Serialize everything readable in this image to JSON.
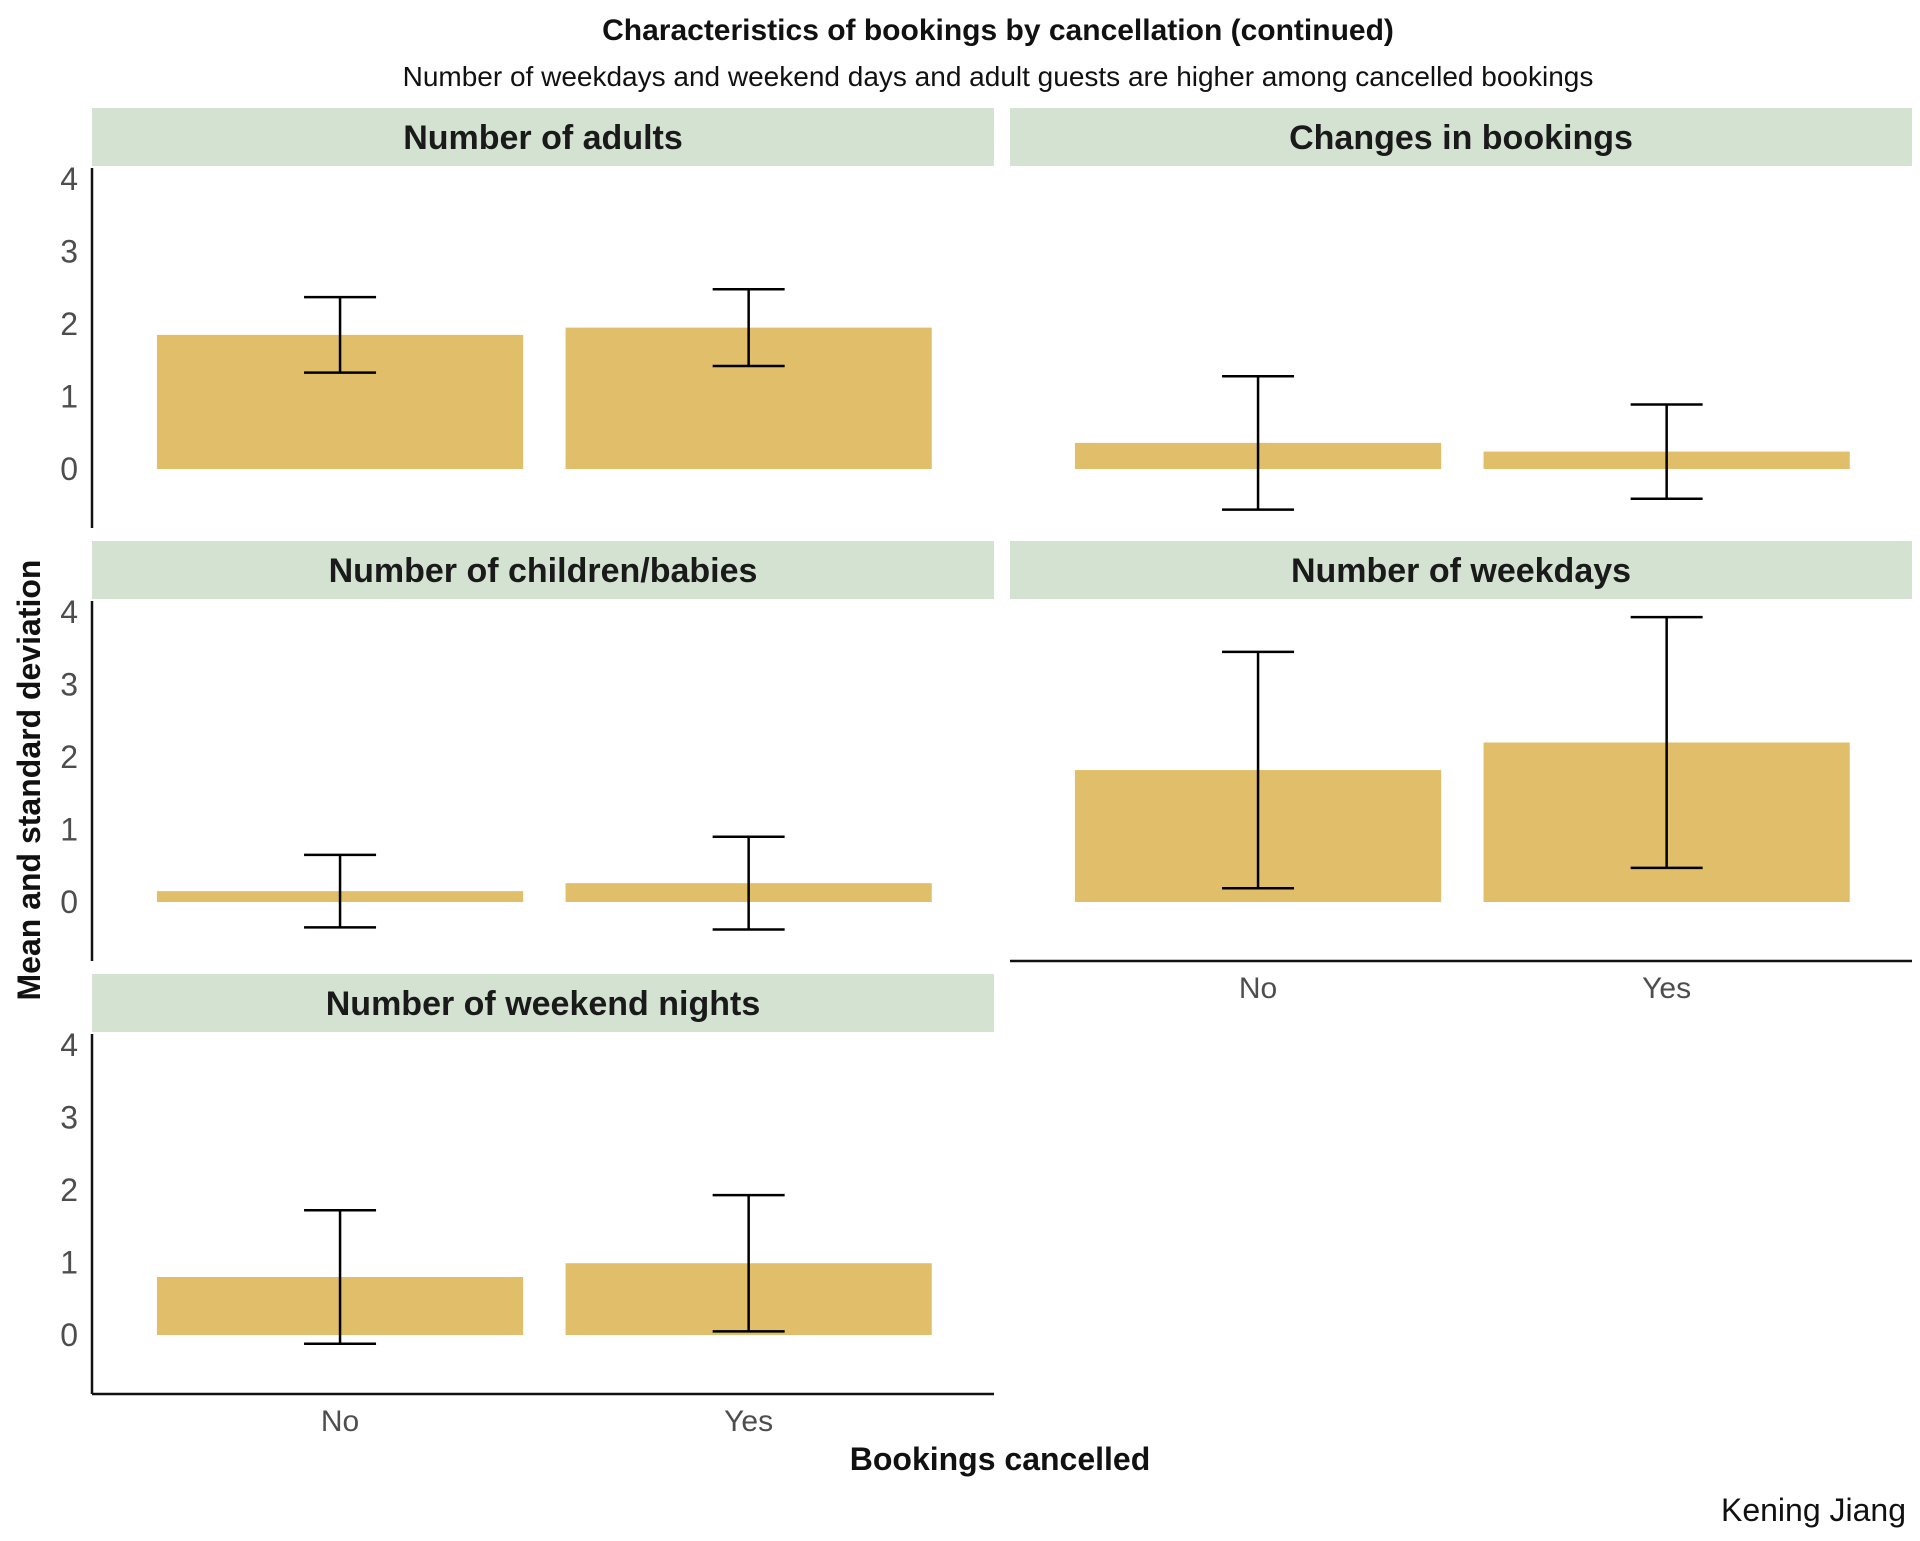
{
  "chart_data": {
    "type": "bar",
    "title": "Characteristics of bookings by cancellation (continued)",
    "subtitle": "Number of weekdays and weekend days and adult guests are higher among cancelled bookings",
    "xlabel": "Bookings cancelled",
    "ylabel": "Mean and standard deviation",
    "caption": "Kening Jiang",
    "categories": [
      "No",
      "Yes"
    ],
    "ylim": [
      -0.75,
      4.1
    ],
    "y_ticks": [
      "0",
      "1",
      "2",
      "3",
      "4"
    ],
    "grid": false,
    "bar_color": "#E1BE6A",
    "strip_color": "#D3E2D1",
    "panels": [
      {
        "title": "Number of adults",
        "series": [
          {
            "values": [
              1.85,
              1.95
            ],
            "sd": [
              0.52,
              0.53
            ]
          }
        ]
      },
      {
        "title": "Changes in bookings",
        "series": [
          {
            "values": [
              0.36,
              0.24
            ],
            "sd": [
              0.92,
              0.65
            ]
          }
        ]
      },
      {
        "title": "Number of children/babies",
        "series": [
          {
            "values": [
              0.15,
              0.26
            ],
            "sd": [
              0.5,
              0.64
            ]
          }
        ]
      },
      {
        "title": "Number of weekdays",
        "series": [
          {
            "values": [
              1.82,
              2.2
            ],
            "sd": [
              1.63,
              1.73
            ]
          }
        ]
      },
      {
        "title": "Number of weekend nights",
        "series": [
          {
            "values": [
              0.8,
              0.99
            ],
            "sd": [
              0.92,
              0.94
            ]
          }
        ]
      }
    ]
  }
}
